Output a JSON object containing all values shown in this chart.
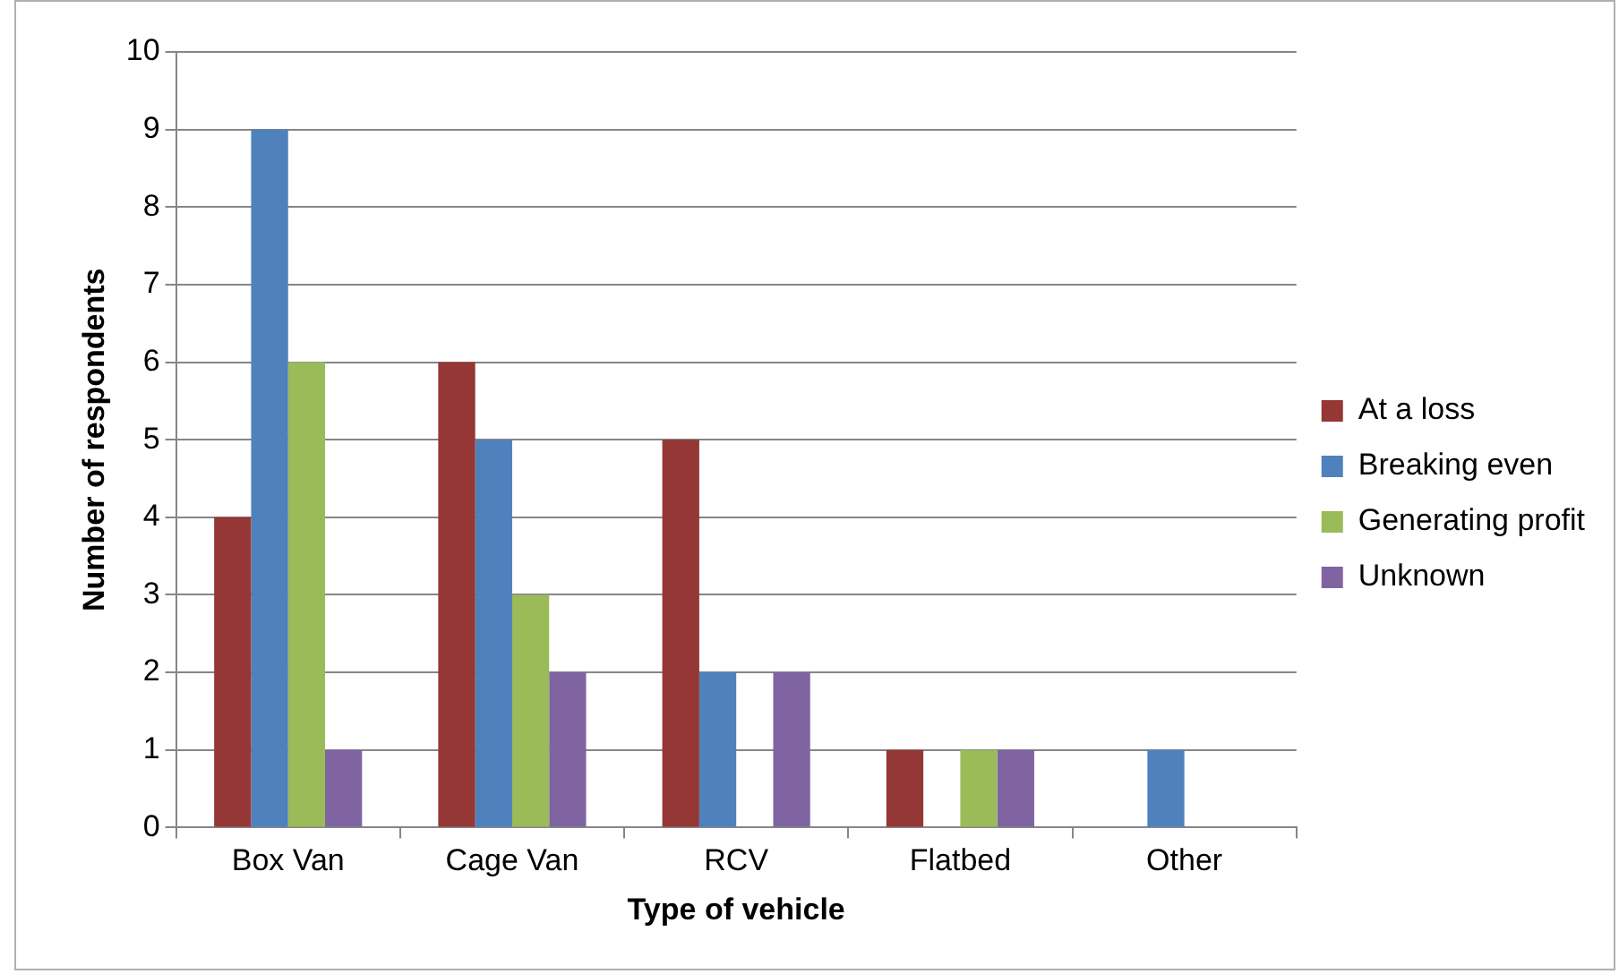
{
  "chart_data": {
    "type": "bar",
    "xlabel": "Type of vehicle",
    "ylabel": "Number of respondents",
    "categories": [
      "Box Van",
      "Cage Van",
      "RCV",
      "Flatbed",
      "Other"
    ],
    "series": [
      {
        "name": "At a loss",
        "color": "#953735",
        "values": [
          4,
          6,
          5,
          1,
          0
        ]
      },
      {
        "name": "Breaking even",
        "color": "#4f81bd",
        "values": [
          9,
          5,
          2,
          0,
          1
        ]
      },
      {
        "name": "Generating profit",
        "color": "#9bbb59",
        "values": [
          6,
          3,
          0,
          1,
          0
        ]
      },
      {
        "name": "Unknown",
        "color": "#8064a2",
        "values": [
          1,
          2,
          2,
          1,
          0
        ]
      }
    ],
    "ylim": [
      0,
      10
    ],
    "yticks": [
      0,
      1,
      2,
      3,
      4,
      5,
      6,
      7,
      8,
      9,
      10
    ],
    "grid": "y",
    "legend": "right"
  }
}
